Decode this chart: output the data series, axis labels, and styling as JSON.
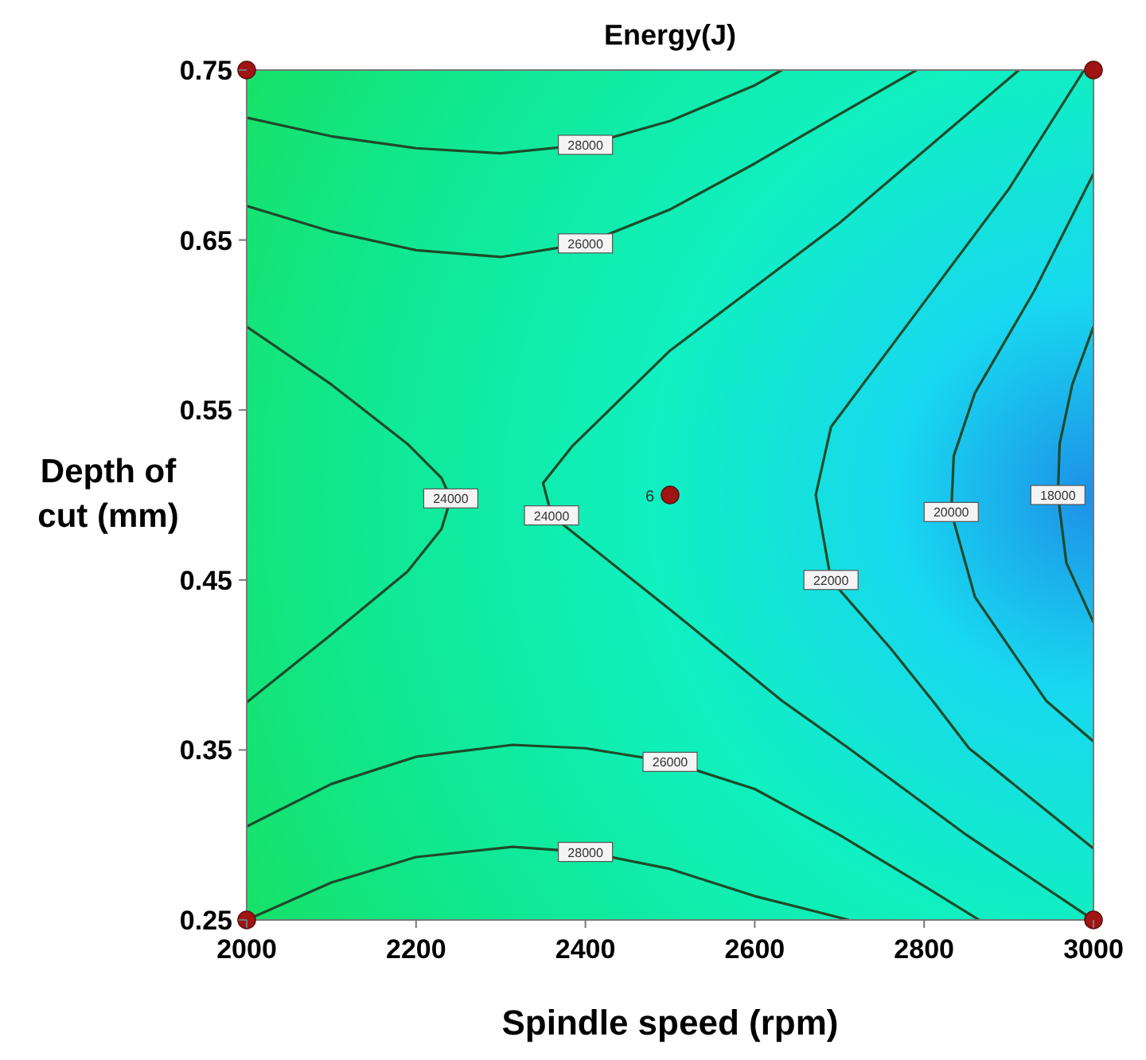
{
  "chart_data": {
    "type": "line",
    "title": "Energy(J)",
    "xlabel": "Spindle speed (rpm)",
    "ylabel": "Depth of cut (mm)",
    "xlim": [
      2000,
      3000
    ],
    "xticks": [
      2000,
      2200,
      2400,
      2600,
      2800,
      3000
    ],
    "ylim": [
      0.25,
      0.75
    ],
    "yticks": [
      0.25,
      0.35,
      0.45,
      0.55,
      0.65,
      0.75
    ],
    "series": [
      {
        "name": "28000",
        "color": "#1e4a2a",
        "x": [
          2000,
          2100,
          2200,
          2300,
          2400,
          2500,
          2600,
          2632
        ],
        "values": [
          0.722,
          0.711,
          0.704,
          0.701,
          0.706,
          0.72,
          0.741,
          0.75
        ]
      },
      {
        "name": "26000",
        "color": "#1e4a2a",
        "x": [
          2000,
          2100,
          2200,
          2300,
          2400,
          2500,
          2600,
          2700,
          2791
        ],
        "values": [
          0.67,
          0.655,
          0.644,
          0.64,
          0.648,
          0.668,
          0.695,
          0.724,
          0.75
        ]
      },
      {
        "name": "24000",
        "color": "#1e4a2a",
        "x": [
          2000,
          2100,
          2190,
          2230,
          2241,
          2230,
          2190,
          2100,
          2000
        ],
        "values": [
          0.599,
          0.565,
          0.53,
          0.51,
          0.498,
          0.48,
          0.455,
          0.418,
          0.378
        ]
      },
      {
        "name": "24000",
        "color": "#1e4a2a",
        "x": [
          2912,
          2700,
          2500,
          2385,
          2350,
          2360,
          2509,
          2632,
          2711,
          2850,
          3000
        ],
        "values": [
          0.75,
          0.66,
          0.585,
          0.529,
          0.507,
          0.488,
          0.429,
          0.379,
          0.351,
          0.3,
          0.25
        ]
      },
      {
        "name": "22000",
        "color": "#1e4a2a",
        "x": [
          2989,
          2900,
          2780,
          2690,
          2672,
          2690,
          2760,
          2810,
          2853,
          3000
        ],
        "values": [
          0.75,
          0.68,
          0.6,
          0.54,
          0.5,
          0.45,
          0.41,
          0.379,
          0.351,
          0.292
        ]
      },
      {
        "name": "20000",
        "color": "#1e4a2a",
        "x": [
          3000,
          2930,
          2860,
          2835,
          2832,
          2860,
          2944,
          3000
        ],
        "values": [
          0.689,
          0.62,
          0.56,
          0.523,
          0.49,
          0.44,
          0.379,
          0.355
        ]
      },
      {
        "name": "18000",
        "color": "#1e4a2a",
        "x": [
          3000,
          2975,
          2960,
          2958,
          2968,
          3000
        ],
        "values": [
          0.599,
          0.565,
          0.53,
          0.5,
          0.46,
          0.425
        ]
      },
      {
        "name": "26000",
        "color": "#1e4a2a",
        "x": [
          2000,
          2100,
          2200,
          2314,
          2400,
          2500,
          2600,
          2700,
          2800,
          2865
        ],
        "values": [
          0.305,
          0.33,
          0.346,
          0.353,
          0.351,
          0.343,
          0.327,
          0.3,
          0.27,
          0.25
        ]
      },
      {
        "name": "28000",
        "color": "#1e4a2a",
        "x": [
          2000,
          2100,
          2200,
          2314,
          2400,
          2500,
          2600,
          2711
        ],
        "values": [
          0.25,
          0.272,
          0.287,
          0.293,
          0.29,
          0.28,
          0.264,
          0.25
        ]
      },
      {
        "type": "scatter",
        "color": "#a01414",
        "x": [
          2000,
          3000,
          2000,
          3000,
          2500
        ],
        "values": [
          0.75,
          0.75,
          0.25,
          0.25,
          0.5
        ]
      }
    ],
    "annotations": [
      {
        "text": "6",
        "x": 2500,
        "y": 0.5
      }
    ]
  }
}
